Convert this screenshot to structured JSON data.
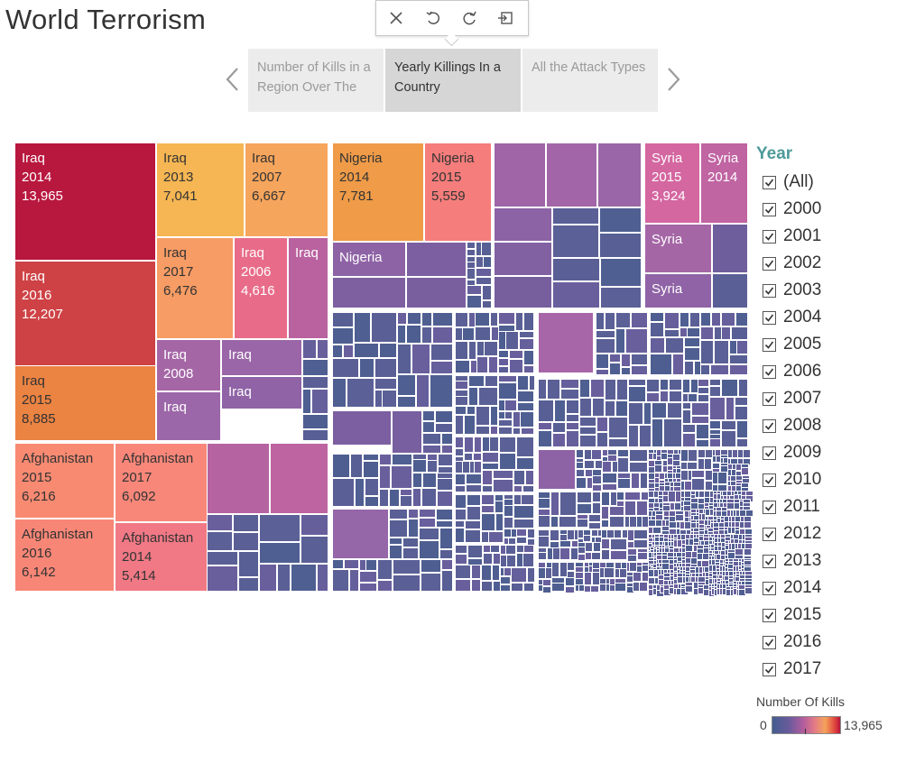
{
  "title": "World Terrorism",
  "toolbar": {
    "items": [
      {
        "name": "close-icon",
        "glyph": "close"
      },
      {
        "name": "undo-icon",
        "glyph": "undo"
      },
      {
        "name": "refresh-icon",
        "glyph": "refresh"
      },
      {
        "name": "exit-icon",
        "glyph": "exit"
      }
    ]
  },
  "story": {
    "tabs": [
      {
        "label": "Number of Kills in a Region Over The",
        "active": false
      },
      {
        "label": "Yearly Killings In a Country",
        "active": true
      },
      {
        "label": "All the Attack Types",
        "active": false
      }
    ]
  },
  "chart_data": {
    "type": "treemap",
    "measure": "Number Of Kills",
    "labeled_cells": [
      {
        "country": "Iraq",
        "year": "2014",
        "kills": 13965
      },
      {
        "country": "Iraq",
        "year": "2016",
        "kills": 12207
      },
      {
        "country": "Iraq",
        "year": "2015",
        "kills": 8885
      },
      {
        "country": "Iraq",
        "year": "2013",
        "kills": 7041
      },
      {
        "country": "Iraq",
        "year": "2007",
        "kills": 6667
      },
      {
        "country": "Iraq",
        "year": "2017",
        "kills": 6476
      },
      {
        "country": "Iraq",
        "year": "2006",
        "kills": 4616
      },
      {
        "country": "Nigeria",
        "year": "2014",
        "kills": 7781
      },
      {
        "country": "Nigeria",
        "year": "2015",
        "kills": 5559
      },
      {
        "country": "Afghanistan",
        "year": "2015",
        "kills": 6216
      },
      {
        "country": "Afghanistan",
        "year": "2016",
        "kills": 6142
      },
      {
        "country": "Afghanistan",
        "year": "2017",
        "kills": 6092
      },
      {
        "country": "Afghanistan",
        "year": "2014",
        "kills": 5414
      },
      {
        "country": "Syria",
        "year": "2015",
        "kills": 3924
      }
    ],
    "cells": [
      {
        "l1": "Iraq",
        "l2": "2014",
        "l3": "13,965",
        "color": "#b8173e",
        "dark": false
      },
      {
        "l1": "Iraq",
        "l2": "2016",
        "l3": "12,207",
        "color": "#ce4245",
        "dark": false
      },
      {
        "l1": "Iraq",
        "l2": "2015",
        "l3": "8,885",
        "color": "#eb8342",
        "dark": true
      },
      {
        "l1": "Iraq",
        "l2": "2013",
        "l3": "7,041",
        "color": "#f5b653",
        "dark": true
      },
      {
        "l1": "Iraq",
        "l2": "2007",
        "l3": "6,667",
        "color": "#f6a55c",
        "dark": true
      },
      {
        "l1": "Iraq",
        "l2": "2017",
        "l3": "6,476",
        "color": "#f79c64",
        "dark": true
      },
      {
        "l1": "Iraq",
        "l2": "2006",
        "l3": "4,616",
        "color": "#e86c89",
        "dark": false
      },
      {
        "l1": "Iraq",
        "l2": "",
        "l3": "",
        "color": "#b9629f",
        "dark": false
      },
      {
        "l1": "Iraq",
        "l2": "2008",
        "l3": "",
        "color": "#a566a6",
        "dark": false
      },
      {
        "l1": "Iraq",
        "l2": "",
        "l3": "",
        "color": "#9b66a8",
        "dark": false
      },
      {
        "l1": "Iraq",
        "l2": "",
        "l3": "",
        "color": "#8f63a6",
        "dark": false
      },
      {
        "l1": "Iraq",
        "l2": "",
        "l3": "",
        "color": "#9c67a8",
        "dark": false
      },
      {
        "l1": "Nigeria",
        "l2": "2014",
        "l3": "7,781",
        "color": "#ef9b48",
        "dark": true
      },
      {
        "l1": "Nigeria",
        "l2": "2015",
        "l3": "5,559",
        "color": "#f57d7b",
        "dark": true
      },
      {
        "l1": "Nigeria",
        "l2": "",
        "l3": "",
        "color": "#8e63a5",
        "dark": false
      },
      {
        "l1": "Afghanistan",
        "l2": "2015",
        "l3": "6,216",
        "color": "#f88a72",
        "dark": true
      },
      {
        "l1": "Afghanistan",
        "l2": "2017",
        "l3": "6,092",
        "color": "#f8877a",
        "dark": true
      },
      {
        "l1": "Afghanistan",
        "l2": "2016",
        "l3": "6,142",
        "color": "#f88676",
        "dark": true
      },
      {
        "l1": "Afghanistan",
        "l2": "2014",
        "l3": "5,414",
        "color": "#f07985",
        "dark": true
      },
      {
        "l1": "Syria",
        "l2": "2015",
        "l3": "3,924",
        "color": "#d466a0",
        "dark": false
      },
      {
        "l1": "Syria",
        "l2": "2014",
        "l3": "",
        "color": "#c064a2",
        "dark": false
      },
      {
        "l1": "Syria",
        "l2": "",
        "l3": "",
        "color": "#a566a6",
        "dark": false
      },
      {
        "l1": "Syria",
        "l2": "",
        "l3": "",
        "color": "#8f63a6",
        "dark": false
      }
    ],
    "unlabeled_palette": [
      "#4f5f92",
      "#5a5f96",
      "#655f9c",
      "#5b6196",
      "#4e5e91",
      "#6a5f9d",
      "#575f94"
    ],
    "color_scale": {
      "min": "0",
      "max": "13,965",
      "title": "Number Of Kills"
    }
  },
  "filter": {
    "title": "Year",
    "options": [
      "(All)",
      "2000",
      "2001",
      "2002",
      "2003",
      "2004",
      "2005",
      "2006",
      "2007",
      "2008",
      "2009",
      "2010",
      "2011",
      "2012",
      "2013",
      "2014",
      "2015",
      "2016",
      "2017"
    ]
  }
}
